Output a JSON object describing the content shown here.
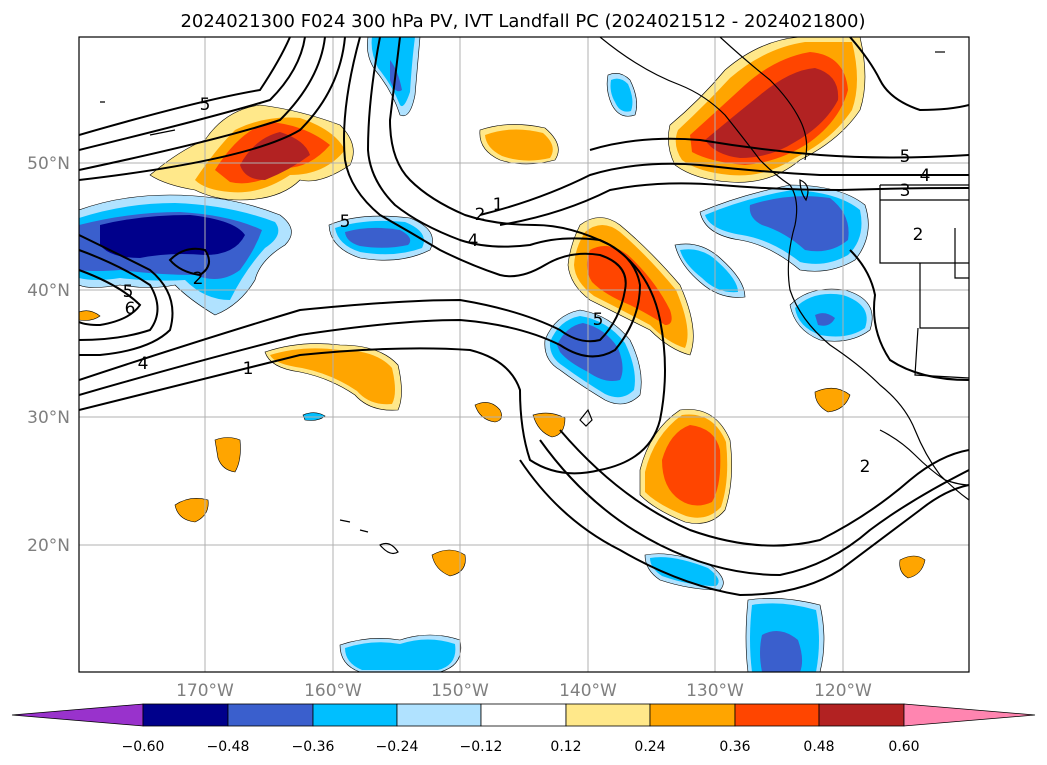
{
  "title": "2024021300 F024 300 hPa PV, IVT Landfall PC (2024021512 - 2024021800)",
  "map": {
    "lon_ticks": [
      "170°W",
      "160°W",
      "150°W",
      "140°W",
      "130°W",
      "120°W"
    ],
    "lat_ticks": [
      "50°N",
      "40°N",
      "30°N",
      "20°N"
    ],
    "colors": {
      "grid": "#b0b0b0",
      "contour": "#000000",
      "coast": "#000000"
    },
    "contour_labels": [
      "5",
      "2",
      "1",
      "4",
      "5",
      "5",
      "6",
      "4",
      "1",
      "5",
      "5",
      "4",
      "3",
      "2",
      "2"
    ]
  },
  "colorbar": {
    "tick_labels": [
      "−0.60",
      "−0.48",
      "−0.36",
      "−0.24",
      "−0.12",
      "0.12",
      "0.24",
      "0.36",
      "0.48",
      "0.60"
    ],
    "colors": [
      "#9932cc",
      "#00008b",
      "#3a5fcd",
      "#00bfff",
      "#b0e2ff",
      "#ffffff",
      "#ffe88a",
      "#ffa500",
      "#ff4500",
      "#b22222",
      "#ff85b0"
    ],
    "extend": "both"
  },
  "fill_colors": {
    "neg1": "#b0e2ff",
    "neg2": "#00bfff",
    "neg3": "#3a5fcd",
    "neg4": "#00008b",
    "pos1": "#ffe88a",
    "pos2": "#ffa500",
    "pos3": "#ff4500",
    "pos4": "#b22222"
  }
}
